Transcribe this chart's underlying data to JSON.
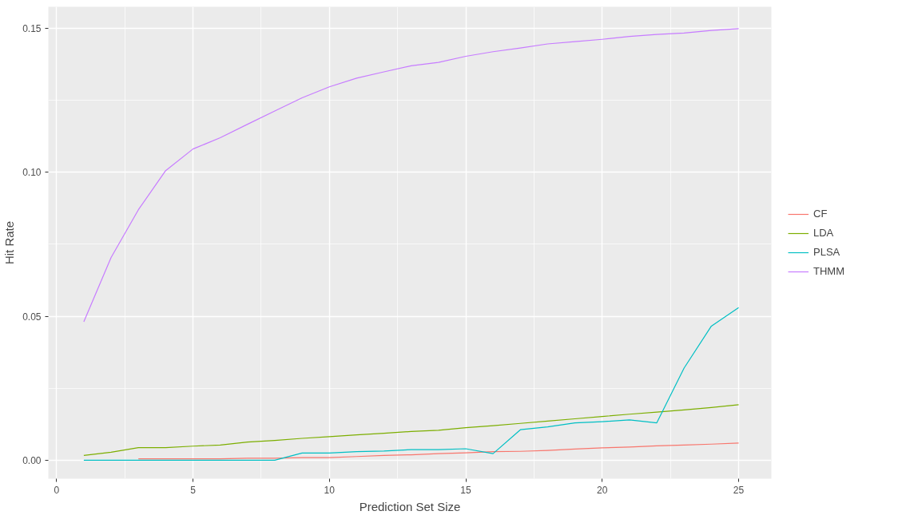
{
  "chart_data": {
    "type": "line",
    "xlabel": "Prediction Set Size",
    "ylabel": "Hit Rate",
    "x": [
      1,
      2,
      3,
      4,
      5,
      6,
      7,
      8,
      9,
      10,
      11,
      12,
      13,
      14,
      15,
      16,
      17,
      18,
      19,
      20,
      21,
      22,
      23,
      24,
      25
    ],
    "series": [
      {
        "name": "CF",
        "color": "#f8766d",
        "values": [
          null,
          null,
          0.0005,
          0.0005,
          0.0005,
          0.0005,
          0.0007,
          0.0007,
          0.0009,
          0.0009,
          0.0013,
          0.0017,
          0.0019,
          0.0023,
          0.0026,
          0.003,
          0.0031,
          0.0034,
          0.0039,
          0.0043,
          0.0046,
          0.005,
          0.0053,
          0.0056,
          0.006
        ]
      },
      {
        "name": "LDA",
        "color": "#7cae00",
        "values": [
          0.0017,
          0.0028,
          0.0044,
          0.0044,
          0.0049,
          0.0053,
          0.0063,
          0.0069,
          0.0076,
          0.0082,
          0.0088,
          0.0094,
          0.01,
          0.0104,
          0.0113,
          0.012,
          0.0128,
          0.0136,
          0.0144,
          0.0152,
          0.016,
          0.0167,
          0.0175,
          0.0183,
          0.0193
        ]
      },
      {
        "name": "PLSA",
        "color": "#00bfc4",
        "values": [
          0,
          0,
          0,
          0,
          0,
          0,
          0,
          0,
          0.0025,
          0.0025,
          0.003,
          0.0032,
          0.0037,
          0.0037,
          0.004,
          0.0023,
          0.0106,
          0.0116,
          0.013,
          0.0134,
          0.014,
          0.013,
          0.032,
          0.0466,
          0.053
        ]
      },
      {
        "name": "THMM",
        "color": "#c77cff",
        "values": [
          0.0481,
          0.0704,
          0.087,
          0.1006,
          0.1081,
          0.112,
          0.1167,
          0.1213,
          0.1259,
          0.1297,
          0.1327,
          0.1349,
          0.137,
          0.1382,
          0.1403,
          0.1419,
          0.1432,
          0.1446,
          0.1454,
          0.1462,
          0.1472,
          0.1479,
          0.1484,
          0.1493,
          0.1499
        ]
      }
    ],
    "xlim": [
      -0.3,
      26.2
    ],
    "ylim": [
      -0.0064,
      0.1575
    ],
    "xticks": [
      0,
      5,
      10,
      15,
      20,
      25
    ],
    "yticks": [
      {
        "value": 0,
        "label": "0.00"
      },
      {
        "value": 0.05,
        "label": "0.05"
      },
      {
        "value": 0.1,
        "label": "0.10"
      },
      {
        "value": 0.15,
        "label": "0.15"
      }
    ],
    "grid": true,
    "legend": "right",
    "marker": "none",
    "line_style": "solid"
  }
}
